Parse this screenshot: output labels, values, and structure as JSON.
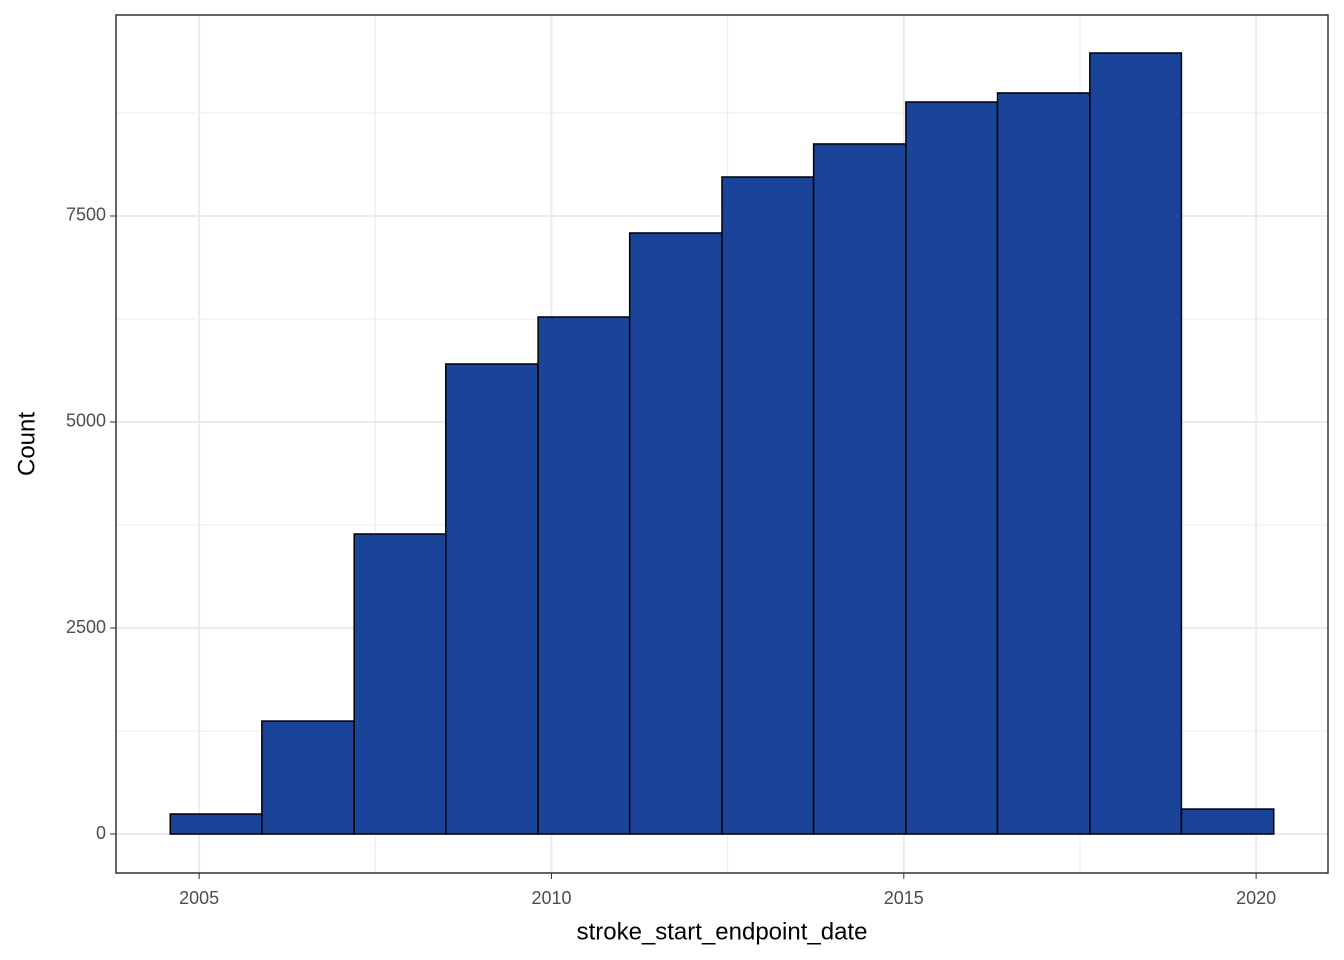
{
  "chart_data": {
    "type": "histogram",
    "xlabel": "stroke_start_endpoint_date",
    "ylabel": "Count",
    "bins": [
      2004.59,
      2005.89,
      2007.2,
      2008.5,
      2009.81,
      2011.11,
      2012.42,
      2013.72,
      2015.03,
      2016.33,
      2017.64,
      2018.94,
      2020.25
    ],
    "values": [
      243,
      1371,
      3641,
      5704,
      6274,
      7294,
      7973,
      8374,
      8883,
      8993,
      9478,
      303
    ],
    "color": "#1a4499",
    "edgecolor": "#000000",
    "xlim": [
      2003.82,
      2021.02
    ],
    "ylim": [
      -473,
      9939
    ],
    "xticks": [
      2005,
      2010,
      2015,
      2020
    ],
    "yticks": [
      0,
      2500,
      5000,
      7500
    ],
    "xminorticks": [
      2007.5,
      2012.5,
      2017.5
    ],
    "yminorticks": [
      1250,
      3750,
      6250,
      8750
    ],
    "grid": true
  }
}
